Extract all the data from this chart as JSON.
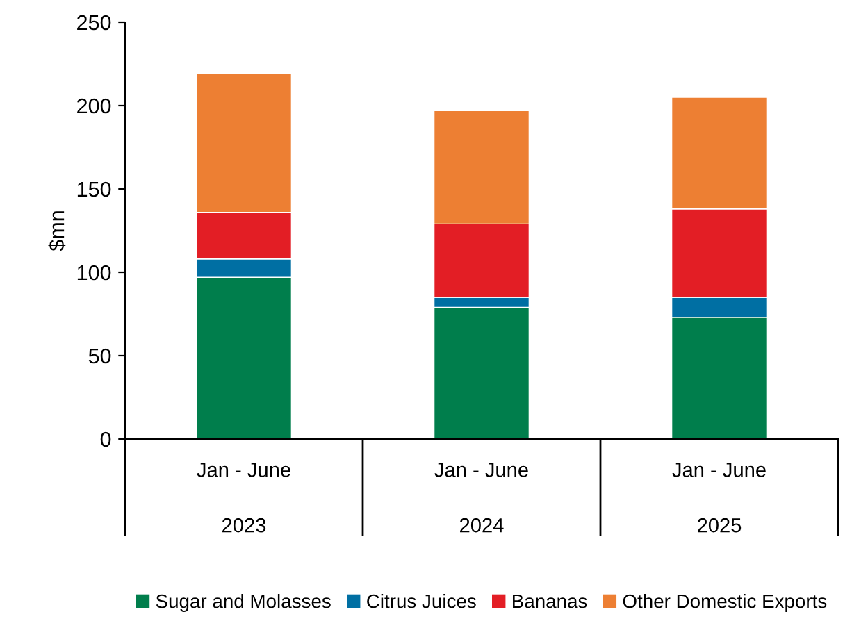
{
  "chart_data": {
    "type": "bar",
    "stacked": true,
    "ylabel": "$mn",
    "categories": [
      "Jan - June\n\n2023",
      "Jan - June\n\n2024",
      "Jan - June\n\n2025"
    ],
    "series": [
      {
        "name": "Sugar and Molasses",
        "color": "#007e4c",
        "values": [
          97,
          79,
          73
        ]
      },
      {
        "name": "Citrus Juices",
        "color": "#006fa3",
        "values": [
          11,
          6,
          12
        ]
      },
      {
        "name": "Bananas",
        "color": "#e31e25",
        "values": [
          28,
          44,
          53
        ]
      },
      {
        "name": "Other Domestic Exports",
        "color": "#ed7f33",
        "values": [
          83,
          68,
          67
        ]
      }
    ],
    "ylim": [
      0,
      250
    ],
    "yticks": [
      0,
      50,
      100,
      150,
      200,
      250
    ],
    "grid": false,
    "legend": "bottom"
  }
}
